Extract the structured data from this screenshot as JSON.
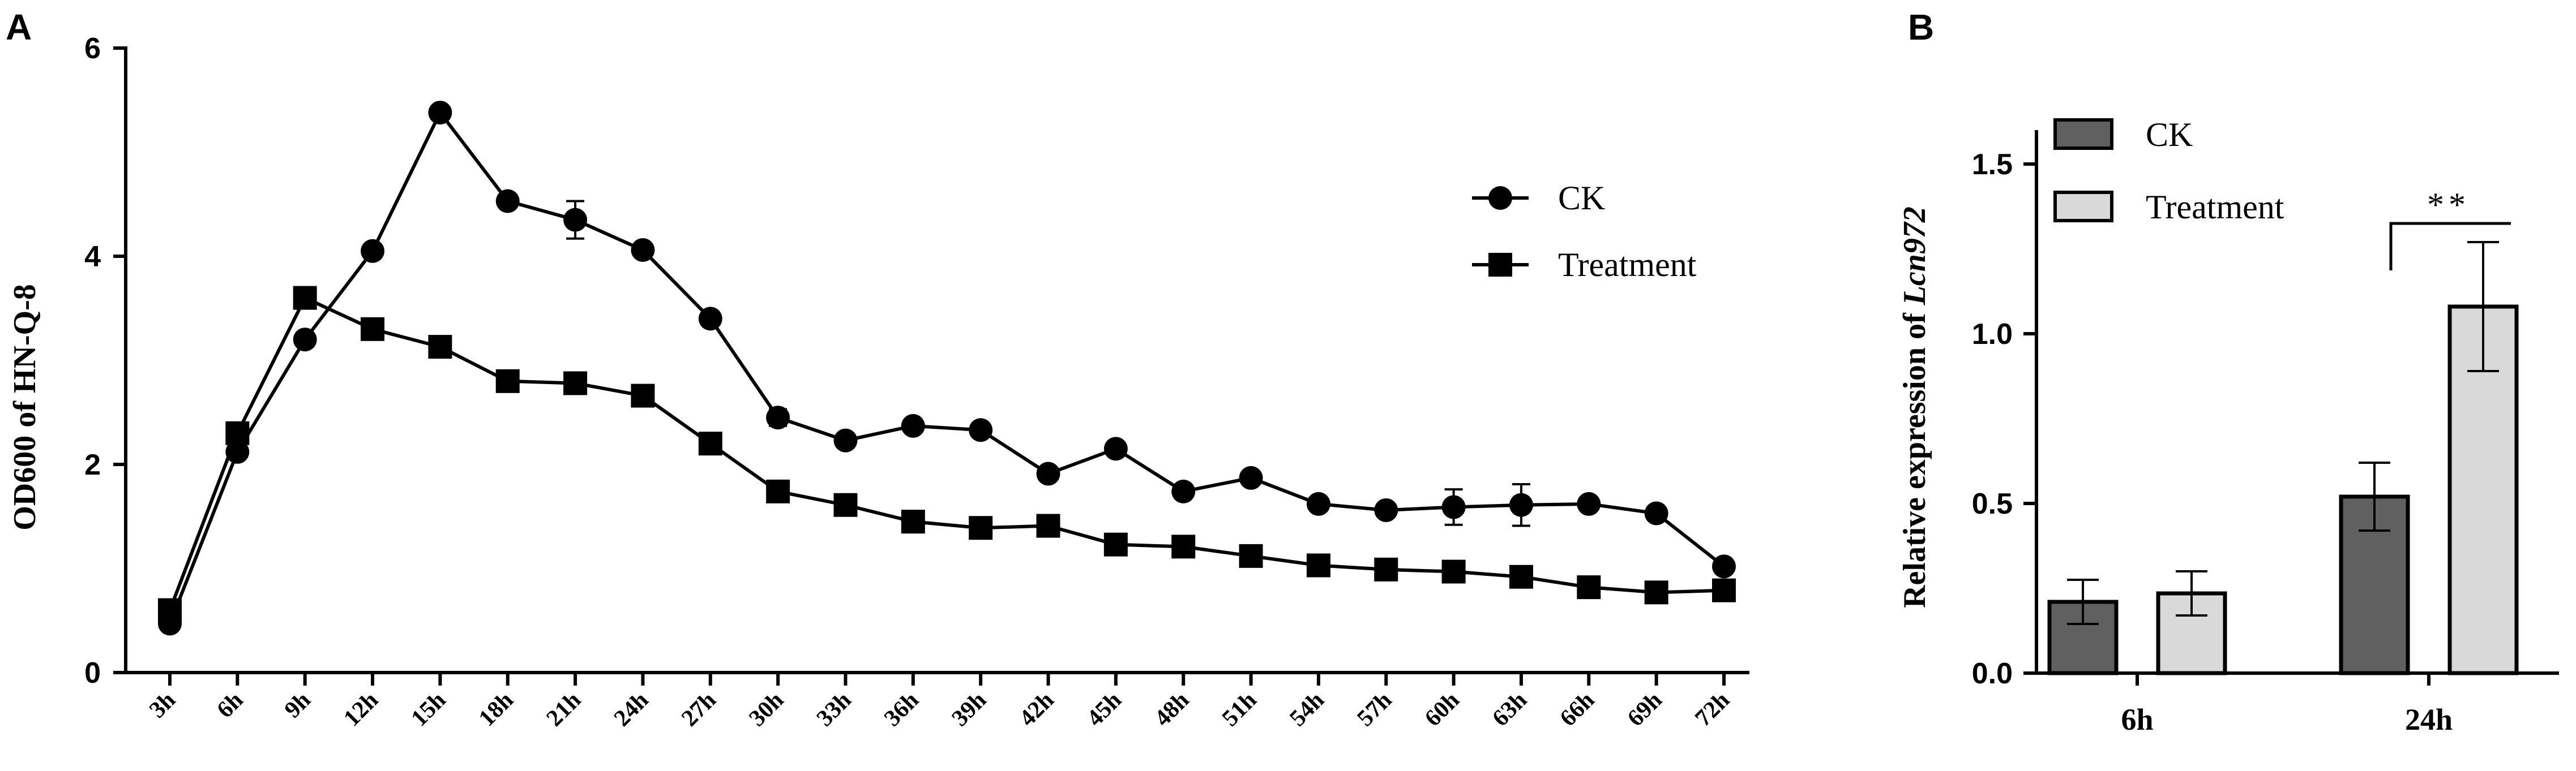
{
  "panels": {
    "a_letter": "A",
    "b_letter": "B"
  },
  "chart_data": [
    {
      "type": "line",
      "title": "",
      "xlabel": "",
      "ylabel": "OD600 of HN-Q-8",
      "ylim": [
        0,
        6
      ],
      "yticks": [
        0,
        2,
        4,
        6
      ],
      "categories": [
        "3h",
        "6h",
        "9h",
        "12h",
        "15h",
        "18h",
        "21h",
        "24h",
        "27h",
        "30h",
        "33h",
        "36h",
        "39h",
        "42h",
        "45h",
        "48h",
        "51h",
        "54h",
        "57h",
        "60h",
        "63h",
        "66h",
        "69h",
        "72h"
      ],
      "series": [
        {
          "name": "CK",
          "marker": "circle",
          "values": [
            0.47,
            2.12,
            3.2,
            4.05,
            5.38,
            4.53,
            4.35,
            4.06,
            3.4,
            2.45,
            2.23,
            2.37,
            2.33,
            1.91,
            2.15,
            1.74,
            1.87,
            1.62,
            1.56,
            1.59,
            1.61,
            1.62,
            1.53,
            1.02
          ],
          "errors": [
            0.03,
            0.04,
            0.04,
            0.06,
            0.05,
            0.04,
            0.18,
            0.05,
            0.05,
            0.08,
            0.04,
            0.04,
            0.04,
            0.03,
            0.04,
            0.03,
            0.04,
            0.06,
            0.06,
            0.17,
            0.2,
            0.05,
            0.05,
            0.04
          ]
        },
        {
          "name": "Treatment",
          "marker": "square",
          "values": [
            0.6,
            2.3,
            3.6,
            3.3,
            3.13,
            2.8,
            2.78,
            2.66,
            2.2,
            1.74,
            1.61,
            1.45,
            1.39,
            1.41,
            1.23,
            1.21,
            1.12,
            1.03,
            0.99,
            0.97,
            0.92,
            0.82,
            0.77,
            0.79
          ],
          "errors": [
            0.03,
            0.04,
            0.04,
            0.04,
            0.04,
            0.04,
            0.04,
            0.04,
            0.04,
            0.04,
            0.03,
            0.03,
            0.03,
            0.03,
            0.03,
            0.03,
            0.03,
            0.03,
            0.03,
            0.03,
            0.03,
            0.03,
            0.03,
            0.03
          ]
        }
      ],
      "legend": {
        "position": "right",
        "entries": [
          "CK",
          "Treatment"
        ]
      },
      "colors": {
        "line": "#000000",
        "marker": "#000000"
      }
    },
    {
      "type": "bar",
      "title": "",
      "xlabel": "",
      "ylabel_prefix": "Relative expression of ",
      "ylabel_gene": "Lcn972",
      "ylim": [
        0,
        1.5
      ],
      "yticks": [
        "0.0",
        "0.5",
        "1.0",
        "1.5"
      ],
      "categories": [
        "6h",
        "24h"
      ],
      "series": [
        {
          "name": "CK",
          "values": [
            0.21,
            0.52
          ],
          "errors": [
            0.065,
            0.1
          ],
          "color": "#606060"
        },
        {
          "name": "Treatment",
          "values": [
            0.235,
            1.08
          ],
          "errors": [
            0.065,
            0.19
          ],
          "color": "#d9d9d9"
        }
      ],
      "legend": {
        "position": "top-left",
        "entries": [
          "CK",
          "Treatment"
        ]
      },
      "significance": {
        "category": "24h",
        "label": "**"
      }
    }
  ]
}
